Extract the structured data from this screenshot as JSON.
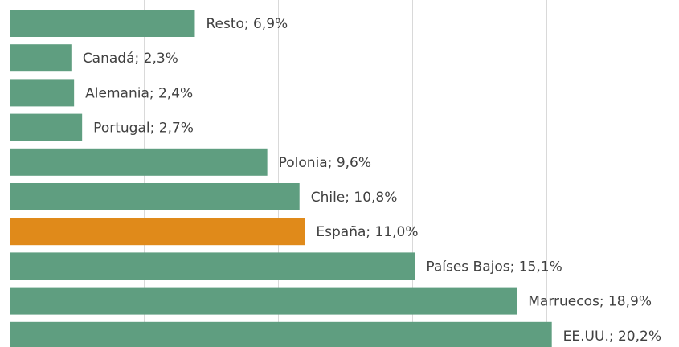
{
  "chart_data": {
    "type": "bar",
    "orientation": "horizontal",
    "values": [
      6.9,
      2.3,
      2.4,
      2.7,
      9.6,
      10.8,
      11.0,
      15.1,
      18.9,
      20.2
    ],
    "value_labels": [
      "Resto; 6,9%",
      "Canadá; 2,3%",
      "Alemania; 2,4%",
      "Portugal; 2,7%",
      "Polonia; 9,6%",
      "Chile; 10,8%",
      "España; 11,0%",
      "Países Bajos; 15,1%",
      "Marruecos; 18,9%",
      "EE.UU.; 20,2%"
    ],
    "colors": [
      "#5f9e80",
      "#5f9e80",
      "#5f9e80",
      "#5f9e80",
      "#5f9e80",
      "#5f9e80",
      "#e08a1a",
      "#5f9e80",
      "#5f9e80",
      "#5f9e80"
    ],
    "xlim": [
      0,
      25
    ],
    "xticks": [
      0,
      5,
      10,
      15,
      20
    ],
    "grid": true
  }
}
